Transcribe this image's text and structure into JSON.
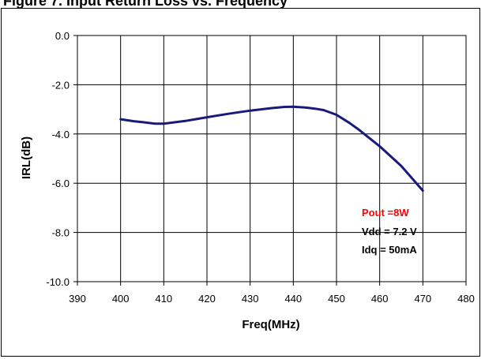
{
  "header_fragment": "Figure 7. Input Return Loss vs. Frequency",
  "chart_data": {
    "type": "line",
    "xlabel": "Freq(MHz)",
    "ylabel": "IRL(dB)",
    "xlim": [
      390,
      480
    ],
    "ylim": [
      -10,
      0
    ],
    "x_ticks": [
      "390",
      "400",
      "410",
      "420",
      "430",
      "440",
      "450",
      "460",
      "470",
      "480"
    ],
    "y_ticks": [
      "0.0",
      "-2.0",
      "-4.0",
      "-6.0",
      "-8.0",
      "-10.0"
    ],
    "grid": true,
    "series": [
      {
        "color": "#1a1a7a",
        "x": [
          400,
          403,
          405,
          408,
          410,
          415,
          420,
          425,
          430,
          435,
          438,
          440,
          443,
          445,
          447,
          450,
          453,
          455,
          460,
          465,
          470
        ],
        "y": [
          -3.4,
          -3.48,
          -3.52,
          -3.58,
          -3.58,
          -3.47,
          -3.32,
          -3.18,
          -3.05,
          -2.95,
          -2.9,
          -2.89,
          -2.93,
          -2.97,
          -3.03,
          -3.22,
          -3.55,
          -3.8,
          -4.5,
          -5.3,
          -6.3
        ]
      }
    ],
    "annotations": [
      {
        "text": "Pout =8W",
        "color": "#ff0000"
      },
      {
        "text": "Vdd = 7.2 V",
        "color": "#000000"
      },
      {
        "text": "Idq = 50mA",
        "color": "#000000"
      }
    ]
  }
}
